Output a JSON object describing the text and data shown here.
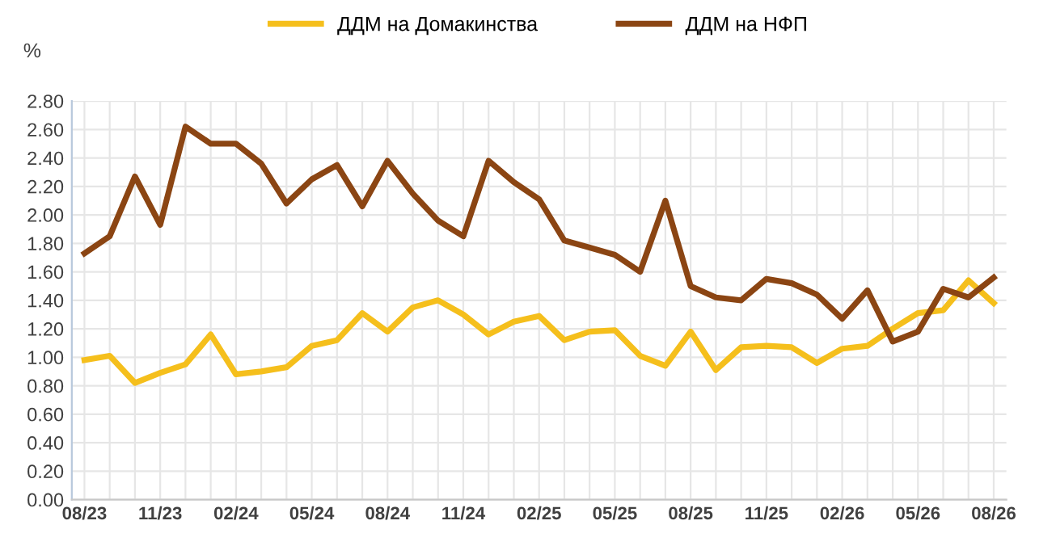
{
  "chart_data": {
    "type": "line",
    "ylabel": "%",
    "categories": [
      "08/23",
      null,
      null,
      "11/23",
      null,
      null,
      "02/24",
      null,
      null,
      "05/24",
      null,
      null,
      "08/24",
      null,
      null,
      "11/24",
      null,
      null,
      "02/25",
      null,
      null,
      "05/25",
      null,
      null,
      "08/25",
      null,
      null,
      "11/25",
      null,
      null,
      "02/26",
      null,
      null,
      "05/26",
      null,
      null,
      "08/26"
    ],
    "series": [
      {
        "name": "ДДМ на Домакинства",
        "color": "#f5bf1c",
        "values": [
          0.98,
          1.01,
          0.82,
          0.89,
          0.95,
          1.16,
          0.88,
          0.9,
          0.93,
          1.08,
          1.12,
          1.31,
          1.18,
          1.35,
          1.4,
          1.3,
          1.16,
          1.25,
          1.29,
          1.12,
          1.18,
          1.19,
          1.01,
          0.94,
          1.18,
          0.91,
          1.07,
          1.08,
          1.07,
          0.96,
          1.06,
          1.08,
          1.2,
          1.31,
          1.33,
          1.54,
          1.38
        ]
      },
      {
        "name": "ДДМ на НФП",
        "color": "#8b4513",
        "values": [
          1.73,
          1.85,
          2.27,
          1.93,
          2.62,
          2.5,
          2.5,
          2.36,
          2.08,
          2.25,
          2.35,
          2.06,
          2.38,
          2.15,
          1.96,
          1.85,
          2.38,
          2.23,
          2.11,
          1.82,
          1.77,
          1.72,
          1.6,
          2.1,
          1.5,
          1.42,
          1.4,
          1.55,
          1.52,
          1.44,
          1.27,
          1.47,
          1.11,
          1.18,
          1.48,
          1.42,
          1.56
        ]
      }
    ],
    "ylim": [
      0,
      2.8
    ],
    "yticks": [
      {
        "value": 0,
        "label": "0.00"
      },
      {
        "value": 0.2,
        "label": "0.20"
      },
      {
        "value": 0.4,
        "label": "0.40"
      },
      {
        "value": 0.6,
        "label": "0.60"
      },
      {
        "value": 0.8,
        "label": "0.80"
      },
      {
        "value": 1.0,
        "label": "1.00"
      },
      {
        "value": 1.2,
        "label": "1.20"
      },
      {
        "value": 1.4,
        "label": "1.40"
      },
      {
        "value": 1.6,
        "label": "1.60"
      },
      {
        "value": 1.8,
        "label": "1.80"
      },
      {
        "value": 2.0,
        "label": "2.00"
      },
      {
        "value": 2.2,
        "label": "2.20"
      },
      {
        "value": 2.4,
        "label": "2.40"
      },
      {
        "value": 2.6,
        "label": "2.60"
      },
      {
        "value": 2.8,
        "label": "2.80"
      }
    ],
    "grid": true,
    "legend": "top",
    "marker": "none",
    "line_style": "solid"
  }
}
